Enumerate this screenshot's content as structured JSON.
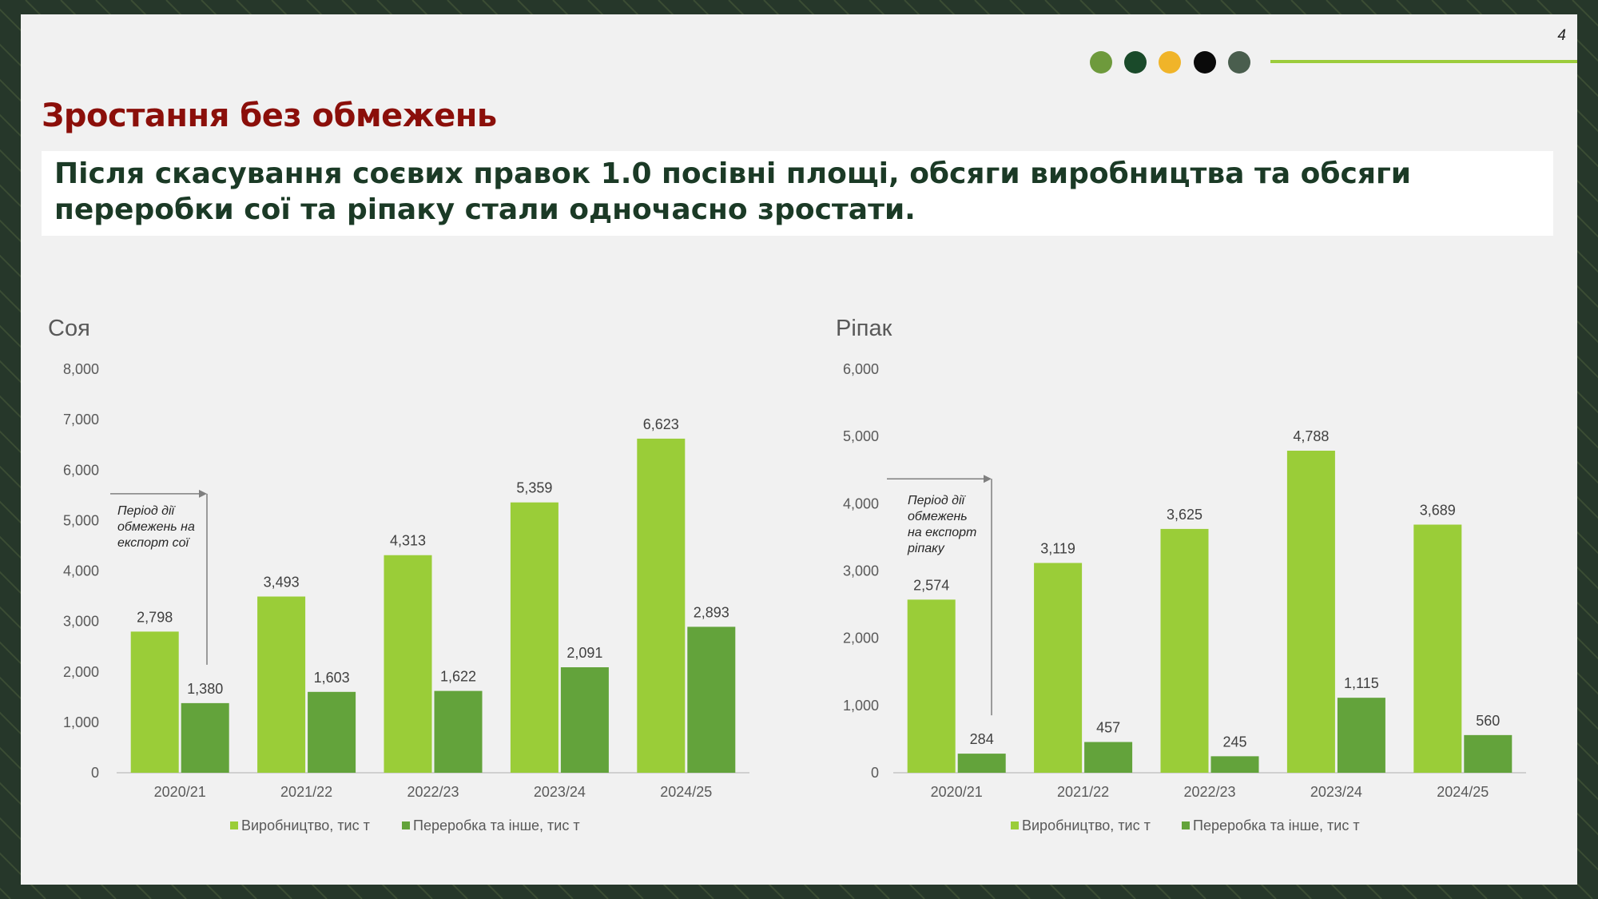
{
  "page": {
    "number": "4",
    "title": "Зростання без обмежень",
    "subtitle": "Після скасування соєвих правок 1.0 посівні площі, обсяги виробництва та обсяги переробки сої та ріпаку стали одночасно зростати.",
    "dot_colors": [
      "#6e9a3c",
      "#1a4a2a",
      "#f0b429",
      "#0a0a0a",
      "#4a5e4e"
    ],
    "accent_line_color": "#9ccc3c",
    "frame_color": "#26372a"
  },
  "chart_data": [
    {
      "type": "bar",
      "title": "Соя",
      "categories": [
        "2020/21",
        "2021/22",
        "2022/23",
        "2023/24",
        "2024/25"
      ],
      "series": [
        {
          "name": "Виробництво, тис т",
          "values": [
            2798,
            3493,
            4313,
            5359,
            6623
          ],
          "labels": [
            "2,798",
            "3,493",
            "4,313",
            "5,359",
            "6,623"
          ],
          "color": "#9acd38"
        },
        {
          "name": "Переробка та інше, тис т",
          "values": [
            1380,
            1603,
            1622,
            2091,
            2893
          ],
          "labels": [
            "1,380",
            "1,603",
            "1,622",
            "2,091",
            "2,893"
          ],
          "color": "#63a33b"
        }
      ],
      "ylim": [
        0,
        8000
      ],
      "yticks": [
        0,
        1000,
        2000,
        3000,
        4000,
        5000,
        6000,
        7000,
        8000
      ],
      "ytick_labels": [
        "0",
        "1,000",
        "2,000",
        "3,000",
        "4,000",
        "5,000",
        "6,000",
        "7,000",
        "8,000"
      ],
      "legend_position": "bottom",
      "grid": false,
      "annotation": {
        "lines": [
          "Період дії",
          "обмежень на",
          "експорт сої"
        ],
        "y_value": 5530
      }
    },
    {
      "type": "bar",
      "title": "Ріпак",
      "categories": [
        "2020/21",
        "2021/22",
        "2022/23",
        "2023/24",
        "2024/25"
      ],
      "series": [
        {
          "name": "Виробництво, тис т",
          "values": [
            2574,
            3119,
            3625,
            4788,
            3689
          ],
          "labels": [
            "2,574",
            "3,119",
            "3,625",
            "4,788",
            "3,689"
          ],
          "color": "#9acd38"
        },
        {
          "name": "Переробка та інше, тис т",
          "values": [
            284,
            457,
            245,
            1115,
            560
          ],
          "labels": [
            "284",
            "457",
            "245",
            "1,115",
            "560"
          ],
          "color": "#63a33b"
        }
      ],
      "ylim": [
        0,
        6000
      ],
      "yticks": [
        0,
        1000,
        2000,
        3000,
        4000,
        5000,
        6000
      ],
      "ytick_labels": [
        "0",
        "1,000",
        "2,000",
        "3,000",
        "4,000",
        "5,000",
        "6,000"
      ],
      "legend_position": "bottom",
      "grid": false,
      "annotation": {
        "lines": [
          "Період дії",
          "обмежень",
          "на експорт",
          "ріпаку"
        ],
        "y_value": 4370
      }
    }
  ]
}
